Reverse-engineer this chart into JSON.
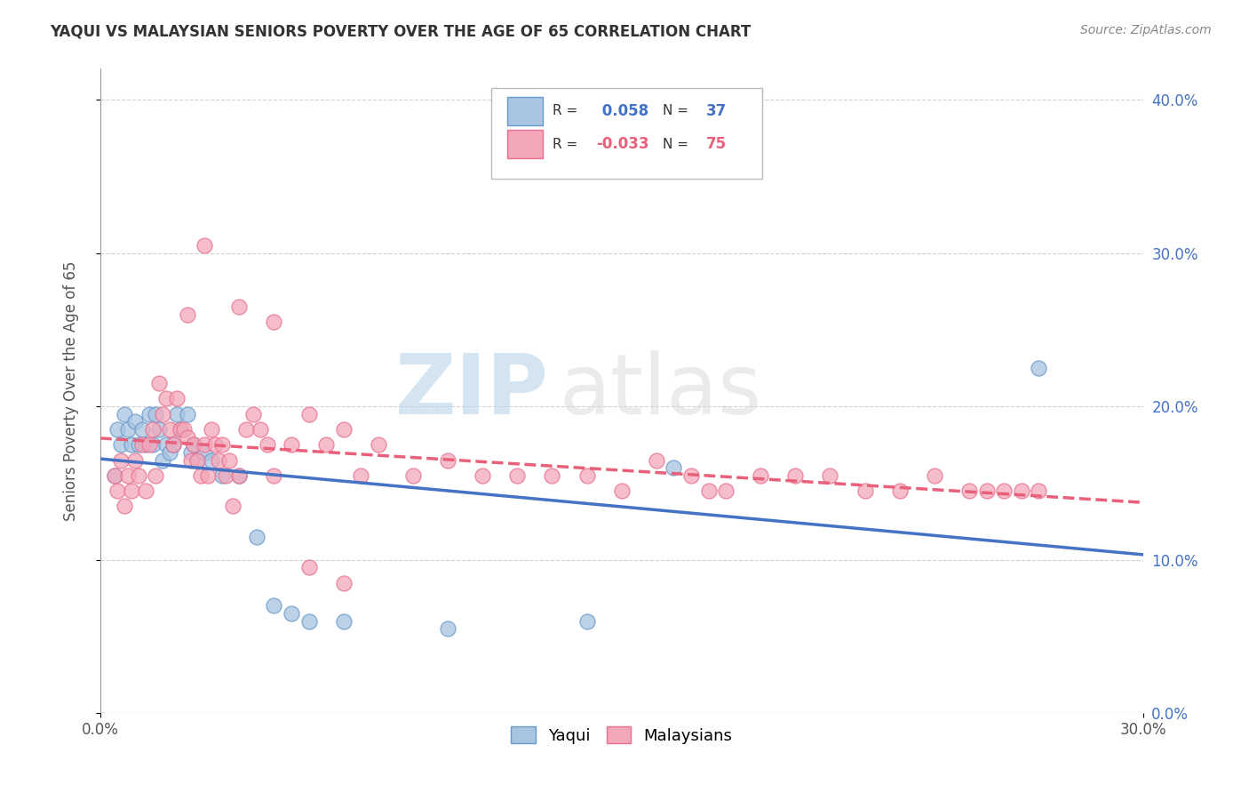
{
  "title": "YAQUI VS MALAYSIAN SENIORS POVERTY OVER THE AGE OF 65 CORRELATION CHART",
  "source": "Source: ZipAtlas.com",
  "ylabel": "Seniors Poverty Over the Age of 65",
  "xlim": [
    0.0,
    0.3
  ],
  "ylim": [
    0.0,
    0.42
  ],
  "x_ticks": [
    0.0,
    0.3
  ],
  "x_tick_labels": [
    "0.0%",
    "30.0%"
  ],
  "y_ticks": [
    0.0,
    0.1,
    0.2,
    0.3,
    0.4
  ],
  "y_tick_labels": [
    "0.0%",
    "10.0%",
    "20.0%",
    "30.0%",
    "40.0%"
  ],
  "yaqui_R": 0.058,
  "yaqui_N": 37,
  "malaysian_R": -0.033,
  "malaysian_N": 75,
  "yaqui_color": "#a8c4e0",
  "yaqui_edge_color": "#6699cc",
  "malaysian_color": "#f4a7b9",
  "malaysian_edge_color": "#e87090",
  "yaqui_line_color": "#4472c4",
  "malaysian_line_color": "#e8607a",
  "background_color": "#ffffff",
  "watermark_zip": "ZIP",
  "watermark_atlas": "atlas",
  "grid_color": "#cccccc",
  "right_tick_color": "#4472c4",
  "left_tick_color": "#888888",
  "yaqui_x": [
    0.005,
    0.008,
    0.01,
    0.012,
    0.013,
    0.015,
    0.016,
    0.017,
    0.018,
    0.019,
    0.02,
    0.021,
    0.022,
    0.023,
    0.024,
    0.025,
    0.026,
    0.027,
    0.028,
    0.029,
    0.03,
    0.031,
    0.032,
    0.033,
    0.035,
    0.038,
    0.04,
    0.045,
    0.05,
    0.055,
    0.06,
    0.07,
    0.085,
    0.1,
    0.14,
    0.165,
    0.27
  ],
  "yaqui_y": [
    0.185,
    0.19,
    0.155,
    0.195,
    0.17,
    0.175,
    0.195,
    0.175,
    0.155,
    0.165,
    0.165,
    0.175,
    0.195,
    0.185,
    0.175,
    0.165,
    0.155,
    0.175,
    0.175,
    0.155,
    0.175,
    0.165,
    0.165,
    0.155,
    0.155,
    0.155,
    0.155,
    0.115,
    0.075,
    0.065,
    0.065,
    0.06,
    0.06,
    0.055,
    0.06,
    0.16,
    0.225
  ],
  "malaysian_x": [
    0.005,
    0.007,
    0.009,
    0.01,
    0.011,
    0.012,
    0.013,
    0.014,
    0.015,
    0.016,
    0.017,
    0.018,
    0.019,
    0.02,
    0.021,
    0.022,
    0.023,
    0.024,
    0.025,
    0.026,
    0.027,
    0.028,
    0.029,
    0.03,
    0.031,
    0.032,
    0.033,
    0.034,
    0.035,
    0.036,
    0.037,
    0.038,
    0.039,
    0.04,
    0.042,
    0.044,
    0.046,
    0.048,
    0.05,
    0.055,
    0.06,
    0.065,
    0.07,
    0.075,
    0.08,
    0.085,
    0.09,
    0.1,
    0.11,
    0.12,
    0.13,
    0.14,
    0.15,
    0.16,
    0.17,
    0.18,
    0.19,
    0.2,
    0.21,
    0.22,
    0.23,
    0.24,
    0.25,
    0.255,
    0.26,
    0.265,
    0.27,
    0.025,
    0.03,
    0.04,
    0.05,
    0.06,
    0.07,
    0.08,
    0.09
  ],
  "malaysian_y": [
    0.155,
    0.145,
    0.165,
    0.135,
    0.155,
    0.145,
    0.165,
    0.155,
    0.175,
    0.145,
    0.175,
    0.195,
    0.155,
    0.185,
    0.175,
    0.205,
    0.175,
    0.155,
    0.175,
    0.165,
    0.175,
    0.165,
    0.155,
    0.175,
    0.155,
    0.185,
    0.175,
    0.165,
    0.175,
    0.155,
    0.165,
    0.135,
    0.175,
    0.145,
    0.185,
    0.195,
    0.185,
    0.175,
    0.155,
    0.175,
    0.195,
    0.175,
    0.185,
    0.155,
    0.175,
    0.165,
    0.155,
    0.165,
    0.155,
    0.155,
    0.155,
    0.155,
    0.145,
    0.165,
    0.155,
    0.145,
    0.145,
    0.155,
    0.155,
    0.155,
    0.145,
    0.155,
    0.145,
    0.145,
    0.145,
    0.145,
    0.145,
    0.26,
    0.305,
    0.265,
    0.255,
    0.195,
    0.09,
    0.085,
    0.08
  ]
}
